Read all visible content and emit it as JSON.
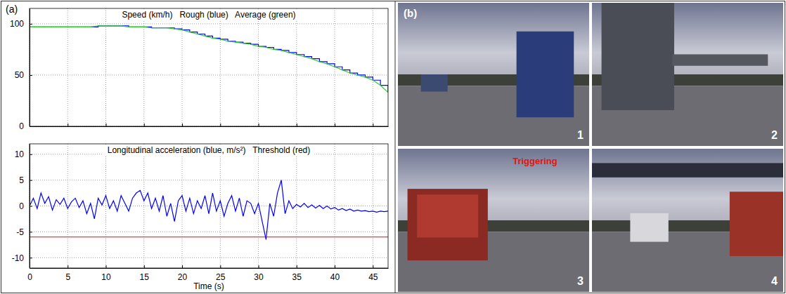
{
  "figure": {
    "panels": [
      {
        "label": "(a)"
      },
      {
        "label": "(b)",
        "frames": [
          {
            "number": 1
          },
          {
            "number": 2
          },
          {
            "number": 3,
            "annotation": "Triggering"
          },
          {
            "number": 4
          }
        ]
      }
    ]
  },
  "chart_data": [
    {
      "type": "line",
      "title": "Speed (km/h)   Rough (blue)   Average (green)",
      "x": [
        0,
        1,
        2,
        3,
        4,
        5,
        6,
        7,
        8,
        9,
        10,
        11,
        12,
        13,
        14,
        15,
        16,
        17,
        18,
        19,
        20,
        21,
        22,
        23,
        24,
        25,
        26,
        27,
        28,
        29,
        30,
        31,
        32,
        33,
        34,
        35,
        36,
        37,
        38,
        39,
        40,
        41,
        42,
        43,
        44,
        45,
        46,
        47
      ],
      "xlim": [
        0,
        47
      ],
      "xticks": [
        0,
        5,
        10,
        15,
        20,
        25,
        30,
        35,
        40,
        45
      ],
      "ylim": [
        0,
        115
      ],
      "yticks": [
        0,
        50,
        100
      ],
      "grid": true,
      "tick_labels": "y",
      "series": [
        {
          "color": "#0000ff",
          "line_style": "step",
          "values": [
            97,
            97,
            97,
            97,
            97,
            97,
            97,
            97,
            97,
            98,
            98,
            98,
            98,
            97,
            97,
            97,
            96,
            96,
            96,
            95,
            94,
            92,
            90,
            88,
            86,
            85,
            83,
            82,
            81,
            80,
            78,
            77,
            75,
            74,
            72,
            70,
            68,
            66,
            63,
            61,
            58,
            55,
            52,
            50,
            48,
            45,
            40,
            33
          ]
        },
        {
          "color": "#33cc33",
          "line_style": "solid",
          "values": [
            97,
            97,
            97,
            97,
            97,
            97,
            97,
            97,
            97,
            98,
            98,
            98,
            98,
            97,
            97,
            97,
            96,
            96,
            96,
            95,
            94,
            92,
            90,
            88,
            86,
            85,
            83,
            82,
            81,
            80,
            78,
            77,
            75,
            74,
            72,
            70,
            68,
            66,
            63,
            61,
            58,
            55,
            52,
            50,
            48,
            45,
            40,
            33
          ]
        }
      ]
    },
    {
      "type": "line",
      "title": "Longitudinal acceleration (blue, m/s²)   Threshold (red)",
      "x_label": "Time (s)",
      "xlim": [
        0,
        47
      ],
      "xticks": [
        0,
        5,
        10,
        15,
        20,
        25,
        30,
        35,
        40,
        45
      ],
      "ylim": [
        -12,
        12
      ],
      "yticks": [
        -10,
        -5,
        0,
        5,
        10
      ],
      "grid": true,
      "series": [
        {
          "color": "#0000ff",
          "line_style": "solid",
          "x": [
            0,
            0.5,
            1,
            1.5,
            2,
            2.5,
            3,
            3.5,
            4,
            4.5,
            5,
            5.5,
            6,
            6.5,
            7,
            7.5,
            8,
            8.5,
            9,
            9.5,
            10,
            10.5,
            11,
            11.5,
            12,
            12.5,
            13,
            13.5,
            14,
            14.5,
            15,
            15.5,
            16,
            16.5,
            17,
            17.5,
            18,
            18.5,
            19,
            19.5,
            20,
            20.5,
            21,
            21.5,
            22,
            22.5,
            23,
            23.5,
            24,
            24.5,
            25,
            25.5,
            26,
            26.5,
            27,
            27.5,
            28,
            28.5,
            29,
            29.5,
            30,
            30.5,
            31,
            31.5,
            32,
            32.5,
            33,
            33.5,
            34,
            34.5,
            35,
            35.5,
            36,
            36.5,
            37,
            37.5,
            38,
            38.5,
            39,
            39.5,
            40,
            40.5,
            41,
            41.5,
            42,
            42.5,
            43,
            43.5,
            44,
            44.5,
            45,
            45.5,
            46,
            46.5,
            47
          ],
          "values": [
            0,
            1.5,
            -0.5,
            2.5,
            0.5,
            1.8,
            -0.8,
            1.2,
            0.3,
            1.5,
            -0.5,
            0.8,
            1.5,
            -0.3,
            1.0,
            -1.5,
            0.5,
            -2.5,
            1.5,
            0.2,
            2.0,
            -0.5,
            1.0,
            -1.0,
            2.0,
            0.5,
            -1.0,
            1.5,
            2.5,
            3.0,
            1.0,
            2.5,
            -0.5,
            1.5,
            -1.0,
            2.0,
            -2.0,
            0.5,
            -3.0,
            1.0,
            2.0,
            -1.0,
            1.5,
            -1.5,
            1.0,
            -0.5,
            2.0,
            -1.5,
            2.5,
            -1.0,
            1.0,
            -2.0,
            0.5,
            2.0,
            -1.0,
            1.5,
            -2.0,
            1.0,
            0.5,
            -1.5,
            0.5,
            -3.0,
            -6.5,
            0.5,
            -2.0,
            2.5,
            5.0,
            -1.5,
            1.0,
            -0.5,
            0.3,
            -0.2,
            0.5,
            -0.3,
            0.2,
            -0.4,
            0.1,
            -0.5,
            0.0,
            -0.6,
            -0.3,
            -0.8,
            -0.5,
            -0.9,
            -0.6,
            -1.0,
            -0.8,
            -1.0,
            -0.9,
            -1.1,
            -1.0,
            -1.2,
            -1.0,
            -1.1,
            -1.0
          ]
        },
        {
          "color": "#ff0000",
          "line_style": "solid",
          "x": [
            0,
            47
          ],
          "values": [
            -6,
            -6
          ]
        }
      ]
    }
  ]
}
